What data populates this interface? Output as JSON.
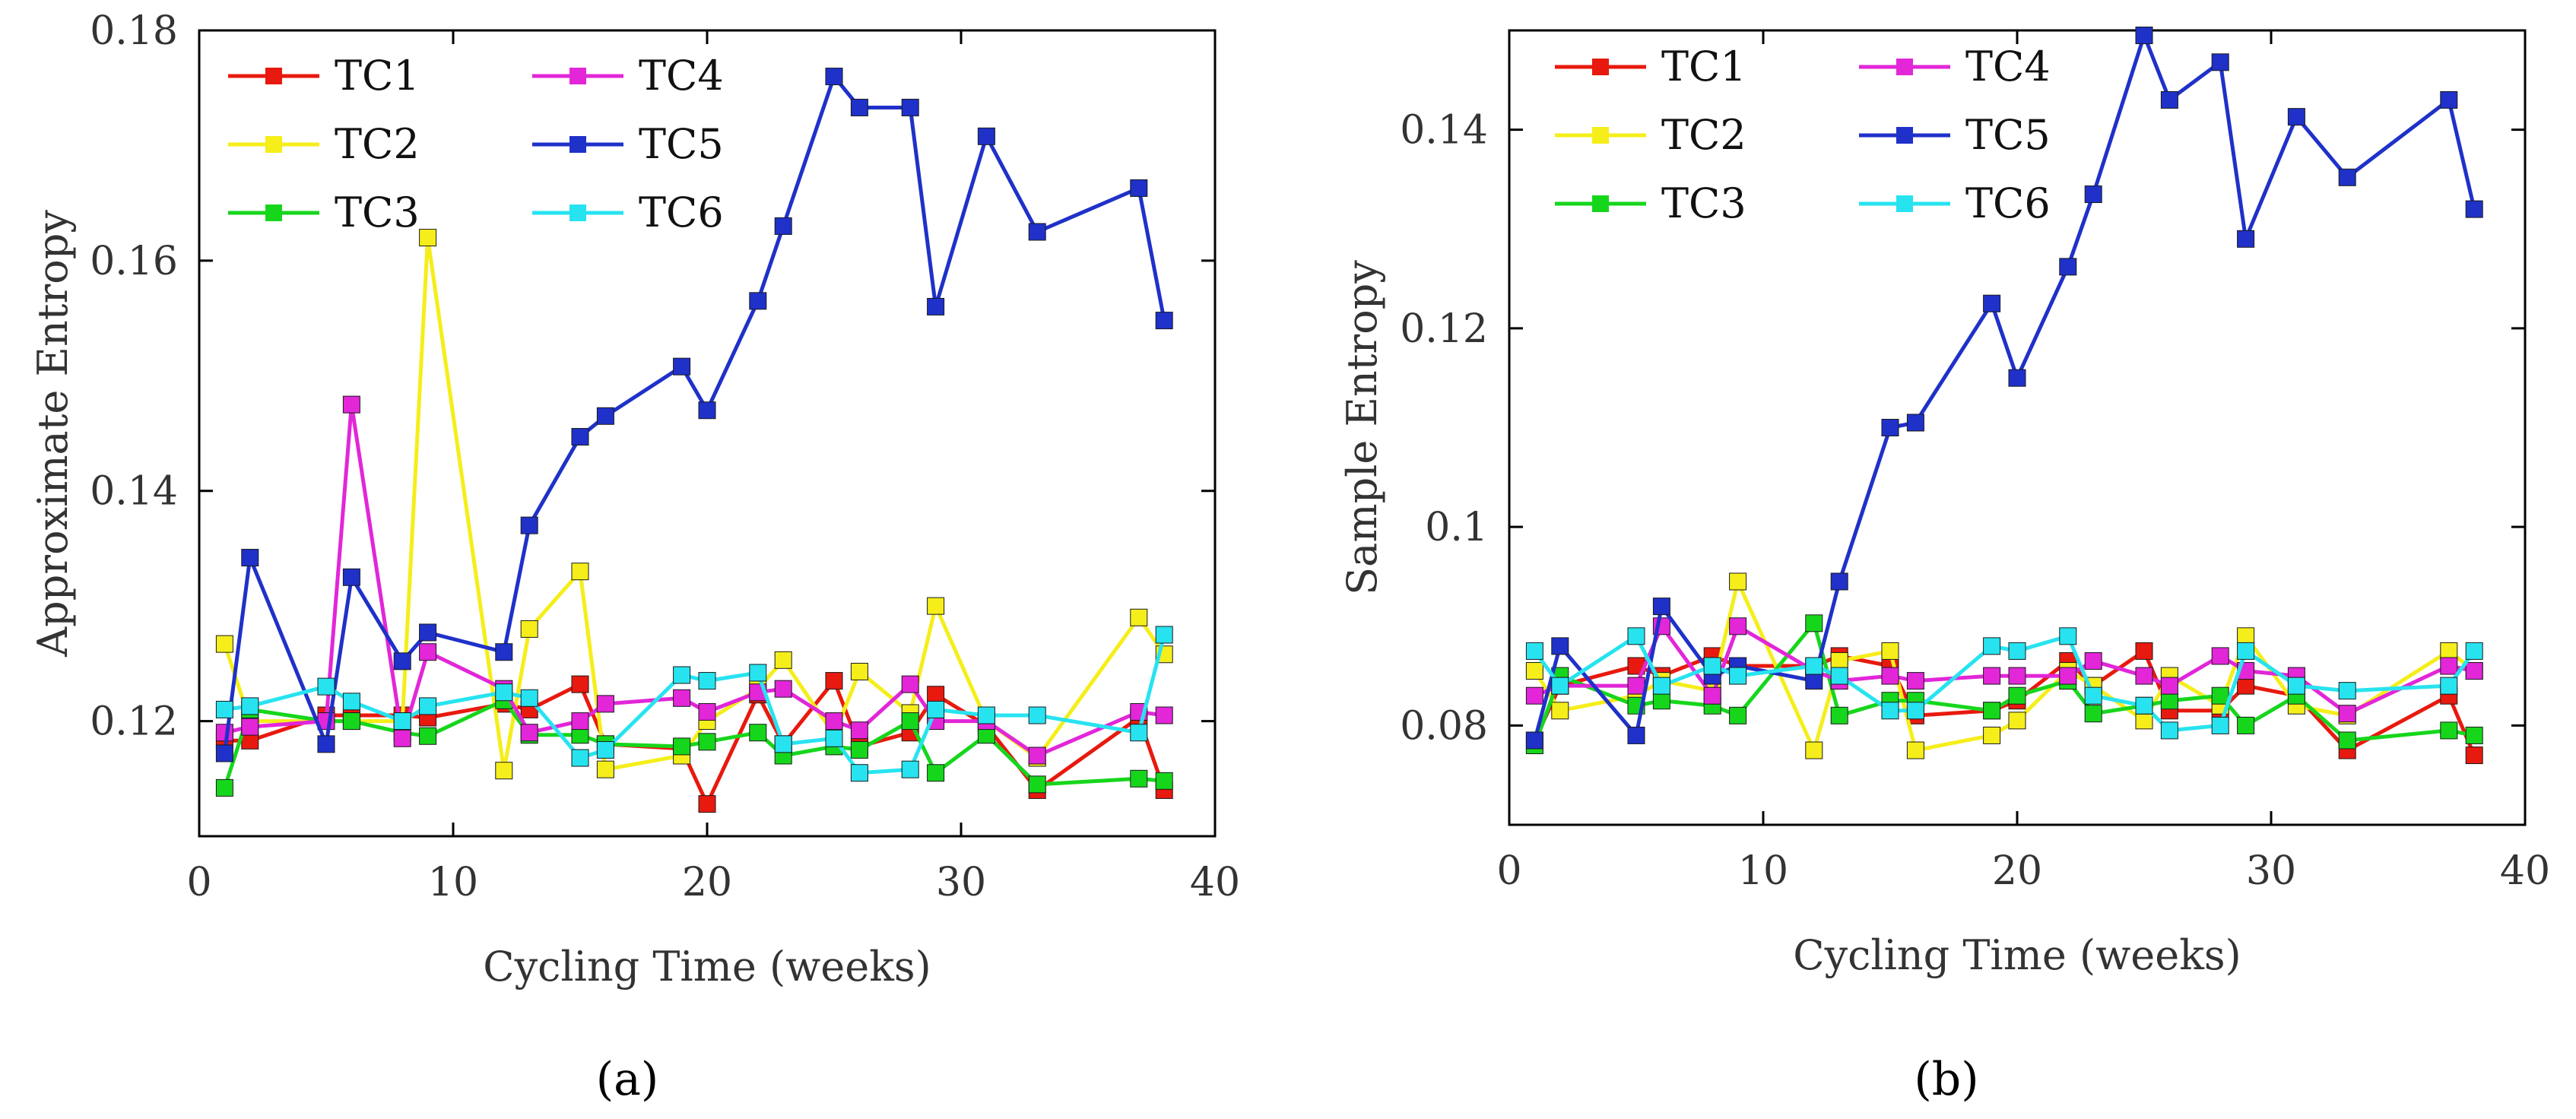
{
  "chart_data": [
    {
      "type": "line",
      "title": "",
      "caption": "(a)",
      "xlabel": "Cycling Time (weeks)",
      "ylabel": "Approximate Entropy",
      "xlim": [
        0,
        40
      ],
      "ylim": [
        0.11,
        0.18
      ],
      "xticks": [
        0,
        10,
        20,
        30,
        40
      ],
      "xtick_labels": [
        "0",
        "10",
        "20",
        "30",
        "40"
      ],
      "yticks": [
        0.12,
        0.14,
        0.16,
        0.18
      ],
      "ytick_labels": [
        "0.12",
        "0.14",
        "0.16",
        "0.18"
      ],
      "x": [
        1,
        2,
        5,
        6,
        8,
        9,
        12,
        13,
        15,
        16,
        19,
        20,
        22,
        23,
        25,
        26,
        28,
        29,
        31,
        33,
        37,
        38
      ],
      "legend_position": "top-left",
      "series": [
        {
          "name": "TC1",
          "color": "#e8190e",
          "values": [
            0.1183,
            0.1183,
            0.1205,
            0.1205,
            0.1205,
            0.1203,
            0.1215,
            0.121,
            0.1232,
            0.118,
            0.1176,
            0.1128,
            0.1223,
            0.118,
            0.1235,
            0.1178,
            0.119,
            0.1223,
            0.1196,
            0.114,
            0.1203,
            0.114
          ]
        },
        {
          "name": "TC2",
          "color": "#f5ee1a",
          "values": [
            0.1267,
            0.12,
            0.12,
            0.12,
            0.12,
            0.162,
            0.1157,
            0.128,
            0.133,
            0.1158,
            0.117,
            0.12,
            0.1228,
            0.1253,
            0.1188,
            0.1243,
            0.1207,
            0.13,
            0.12,
            0.1168,
            0.129,
            0.1258
          ]
        },
        {
          "name": "TC3",
          "color": "#16d61c",
          "values": [
            0.1142,
            0.121,
            0.12,
            0.12,
            0.119,
            0.1187,
            0.1218,
            0.1188,
            0.1188,
            0.118,
            0.1178,
            0.1182,
            0.119,
            0.117,
            0.1178,
            0.1175,
            0.12,
            0.1155,
            0.1188,
            0.1145,
            0.115,
            0.1148
          ]
        },
        {
          "name": "TC4",
          "color": "#e226d8",
          "values": [
            0.119,
            0.1195,
            0.12,
            0.1475,
            0.1185,
            0.126,
            0.1228,
            0.119,
            0.12,
            0.1215,
            0.122,
            0.1208,
            0.1225,
            0.1228,
            0.12,
            0.1192,
            0.1232,
            0.12,
            0.12,
            0.117,
            0.1208,
            0.1205
          ]
        },
        {
          "name": "TC5",
          "color": "#1f31c9",
          "values": [
            0.1172,
            0.1342,
            0.118,
            0.1325,
            0.1252,
            0.1277,
            0.126,
            0.137,
            0.1447,
            0.1465,
            0.1508,
            0.147,
            0.1565,
            0.163,
            0.176,
            0.1733,
            0.1733,
            0.156,
            0.1708,
            0.1625,
            0.1663,
            0.1548
          ]
        },
        {
          "name": "TC6",
          "color": "#27e3f0",
          "values": [
            0.121,
            0.1213,
            0.123,
            0.1217,
            0.12,
            0.1213,
            0.1225,
            0.122,
            0.1168,
            0.1175,
            0.124,
            0.1235,
            0.1242,
            0.118,
            0.1185,
            0.1155,
            0.1158,
            0.121,
            0.1205,
            0.1205,
            0.119,
            0.1275
          ]
        }
      ]
    },
    {
      "type": "line",
      "title": "",
      "caption": "(b)",
      "xlabel": "Cycling Time (weeks)",
      "ylabel": "Sample Entropy",
      "xlim": [
        0,
        40
      ],
      "ylim": [
        0.07,
        0.15
      ],
      "xticks": [
        0,
        10,
        20,
        30,
        40
      ],
      "xtick_labels": [
        "0",
        "10",
        "20",
        "30",
        "40"
      ],
      "yticks": [
        0.08,
        0.1,
        0.12,
        0.14
      ],
      "ytick_labels": [
        "0.08",
        "0.1",
        "0.12",
        "0.14"
      ],
      "x": [
        1,
        2,
        5,
        6,
        8,
        9,
        12,
        13,
        15,
        16,
        19,
        20,
        22,
        23,
        25,
        26,
        28,
        29,
        31,
        33,
        37,
        38
      ],
      "legend_position": "top-left",
      "series": [
        {
          "name": "TC1",
          "color": "#e8190e",
          "values": [
            0.0785,
            0.084,
            0.086,
            0.085,
            0.087,
            0.086,
            0.086,
            0.087,
            0.086,
            0.081,
            0.0815,
            0.0825,
            0.0865,
            0.084,
            0.0875,
            0.0815,
            0.0815,
            0.084,
            0.083,
            0.0775,
            0.083,
            0.077
          ]
        },
        {
          "name": "TC2",
          "color": "#f5ee1a",
          "values": [
            0.0855,
            0.0815,
            0.083,
            0.0845,
            0.0835,
            0.0945,
            0.0775,
            0.0865,
            0.0875,
            0.0775,
            0.079,
            0.0805,
            0.0855,
            0.084,
            0.0805,
            0.085,
            0.082,
            0.089,
            0.082,
            0.081,
            0.0875,
            0.0855
          ]
        },
        {
          "name": "TC3",
          "color": "#16d61c",
          "values": [
            0.078,
            0.085,
            0.082,
            0.0825,
            0.082,
            0.081,
            0.0903,
            0.081,
            0.0825,
            0.0825,
            0.0815,
            0.083,
            0.0845,
            0.0812,
            0.082,
            0.0825,
            0.083,
            0.08,
            0.083,
            0.0785,
            0.0795,
            0.079
          ]
        },
        {
          "name": "TC4",
          "color": "#e226d8",
          "values": [
            0.083,
            0.084,
            0.084,
            0.09,
            0.083,
            0.09,
            0.0855,
            0.0845,
            0.085,
            0.0845,
            0.085,
            0.085,
            0.085,
            0.0865,
            0.085,
            0.084,
            0.087,
            0.0855,
            0.085,
            0.0812,
            0.086,
            0.0855
          ]
        },
        {
          "name": "TC5",
          "color": "#1f31c9",
          "values": [
            0.0785,
            0.088,
            0.079,
            0.092,
            0.085,
            0.086,
            0.0845,
            0.0945,
            0.11,
            0.1105,
            0.1225,
            0.115,
            0.1262,
            0.1335,
            0.1495,
            0.143,
            0.1468,
            0.129,
            0.1413,
            0.1352,
            0.143,
            0.132
          ]
        },
        {
          "name": "TC6",
          "color": "#27e3f0",
          "values": [
            0.0875,
            0.084,
            0.089,
            0.084,
            0.086,
            0.085,
            0.086,
            0.085,
            0.0815,
            0.0815,
            0.088,
            0.0875,
            0.089,
            0.083,
            0.082,
            0.0795,
            0.08,
            0.0875,
            0.084,
            0.0835,
            0.084,
            0.0875
          ]
        }
      ]
    }
  ]
}
